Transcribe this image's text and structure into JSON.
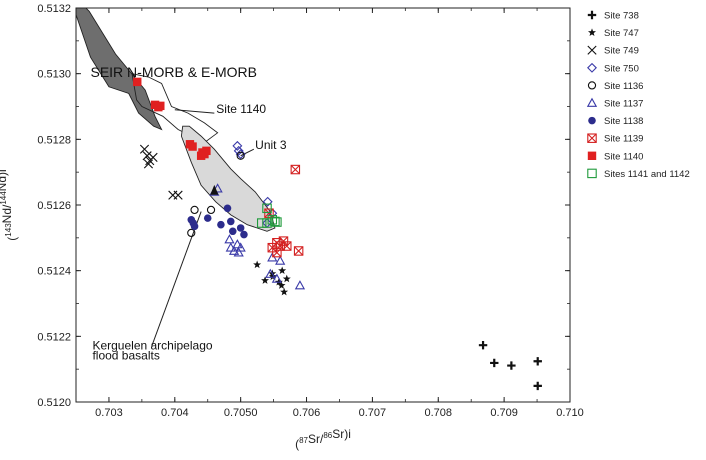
{
  "chart_data": {
    "type": "scatter",
    "title": "",
    "xlabel": "(87Sr/86Sr)i",
    "ylabel": "(143Nd/144Nd)i",
    "xlim": [
      0.7025,
      0.71
    ],
    "ylim": [
      0.512,
      0.5132
    ],
    "x_ticks": [
      0.703,
      0.704,
      0.705,
      0.706,
      0.707,
      0.708,
      0.709,
      0.71
    ],
    "x_tick_labels": [
      "0.703",
      "0.704",
      "0.7050",
      "0.706",
      "0.707",
      "0.708",
      "0.709",
      "0.710"
    ],
    "y_ticks": [
      0.512,
      0.5122,
      0.5124,
      0.5126,
      0.5128,
      0.513,
      0.5132
    ],
    "y_tick_labels": [
      "0.5120",
      "0.5122",
      "0.5124",
      "0.5126",
      "0.5128",
      "0.5130",
      "0.5132"
    ],
    "grid": false,
    "legend_placement": "right",
    "fields": [
      {
        "label": "SEIR N-MORB & E-MORB",
        "fill": "#6e6e6e",
        "outline": [
          [
            0.7025,
            0.51318
          ],
          [
            0.70272,
            0.51305
          ],
          [
            0.703,
            0.51296
          ],
          [
            0.7033,
            0.51294
          ],
          [
            0.70345,
            0.51288
          ],
          [
            0.70368,
            0.51284
          ],
          [
            0.7038,
            0.51283
          ],
          [
            0.7037,
            0.51287
          ],
          [
            0.70355,
            0.51295
          ],
          [
            0.7031,
            0.51306
          ],
          [
            0.7027,
            0.51319
          ],
          [
            0.70255,
            0.51322
          ],
          [
            0.7025,
            0.51322
          ]
        ]
      },
      {
        "label": "Site 1140",
        "fill": "none",
        "outline": [
          [
            0.70335,
            0.513
          ],
          [
            0.70342,
            0.51292
          ],
          [
            0.7035,
            0.5129
          ],
          [
            0.70382,
            0.51287
          ],
          [
            0.70405,
            0.51283
          ],
          [
            0.70445,
            0.51279
          ],
          [
            0.70465,
            0.51282
          ],
          [
            0.70445,
            0.51285
          ],
          [
            0.7042,
            0.51288
          ],
          [
            0.70395,
            0.5129
          ],
          [
            0.7038,
            0.51297
          ],
          [
            0.7036,
            0.51299
          ],
          [
            0.70335,
            0.513
          ]
        ]
      },
      {
        "label": "Kerguelen archipelago flood basalts",
        "fill": "#d9d9d9",
        "outline": [
          [
            0.70422,
            0.51284
          ],
          [
            0.7044,
            0.51281
          ],
          [
            0.7046,
            0.51277
          ],
          [
            0.70485,
            0.51271
          ],
          [
            0.705,
            0.51268
          ],
          [
            0.70522,
            0.51264
          ],
          [
            0.70545,
            0.51258
          ],
          [
            0.70552,
            0.51253
          ],
          [
            0.7054,
            0.51252
          ],
          [
            0.7051,
            0.51254
          ],
          [
            0.70485,
            0.51257
          ],
          [
            0.70462,
            0.51261
          ],
          [
            0.7044,
            0.51266
          ],
          [
            0.70425,
            0.51273
          ],
          [
            0.7041,
            0.51281
          ],
          [
            0.70412,
            0.51284
          ],
          [
            0.70422,
            0.51284
          ]
        ]
      }
    ],
    "annotations": [
      {
        "text": "SEIR N-MORB & E-MORB",
        "x": 0.70272,
        "y": 0.51299,
        "size": 14
      },
      {
        "text": "Site 1140",
        "x": 0.70463,
        "y": 0.51288,
        "size": 12
      },
      {
        "text": "Unit 3",
        "x": 0.70522,
        "y": 0.51277,
        "size": 12
      },
      {
        "text": "Kerguelen archipelago",
        "x": 0.70275,
        "y": 0.51216,
        "size": 12
      },
      {
        "text": "flood basalts",
        "x": 0.70275,
        "y": 0.51213,
        "size": 12
      }
    ],
    "leader_lines": [
      [
        [
          0.7046,
          0.51288
        ],
        [
          0.704,
          0.51289
        ]
      ],
      [
        [
          0.7052,
          0.51277
        ],
        [
          0.705,
          0.51275
        ]
      ],
      [
        [
          0.70365,
          0.51217
        ],
        [
          0.7044,
          0.51258
        ]
      ]
    ],
    "series": [
      {
        "name": "Site 738",
        "marker": "plus",
        "color": "#111111",
        "points": [
          [
            0.70868,
            0.512173
          ],
          [
            0.70885,
            0.512119
          ],
          [
            0.70911,
            0.512111
          ],
          [
            0.70951,
            0.512124
          ],
          [
            0.70951,
            0.512049
          ]
        ]
      },
      {
        "name": "Site 747",
        "marker": "star",
        "color": "#111111",
        "points": [
          [
            0.70525,
            0.512418
          ],
          [
            0.70537,
            0.51237
          ],
          [
            0.70549,
            0.512382
          ],
          [
            0.70548,
            0.512391
          ],
          [
            0.70558,
            0.512365
          ],
          [
            0.70562,
            0.512355
          ],
          [
            0.70566,
            0.512335
          ],
          [
            0.7057,
            0.512375
          ],
          [
            0.70563,
            0.5124
          ]
        ]
      },
      {
        "name": "Site 749",
        "marker": "x",
        "color": "#111111",
        "points": [
          [
            0.70354,
            0.51277
          ],
          [
            0.70358,
            0.51275
          ],
          [
            0.70362,
            0.512735
          ],
          [
            0.70367,
            0.512745
          ],
          [
            0.7036,
            0.512725
          ],
          [
            0.70397,
            0.51263
          ],
          [
            0.70405,
            0.51263
          ]
        ]
      },
      {
        "name": "Site 750",
        "marker": "diamond",
        "color": "#3a3aa8",
        "points": [
          [
            0.70495,
            0.51278
          ],
          [
            0.70497,
            0.512765
          ],
          [
            0.705,
            0.512755
          ],
          [
            0.70541,
            0.51261
          ],
          [
            0.70548,
            0.512575
          ],
          [
            0.7054,
            0.512545
          ]
        ]
      },
      {
        "name": "Site 1136",
        "marker": "circle",
        "color": "#111111",
        "points": [
          [
            0.705,
            0.51275
          ],
          [
            0.70425,
            0.512515
          ],
          [
            0.70455,
            0.512585
          ],
          [
            0.7043,
            0.512585
          ]
        ]
      },
      {
        "name": "Site 1137",
        "marker": "triangle",
        "color": "#3a3aa8",
        "points": [
          [
            0.70483,
            0.512495
          ],
          [
            0.70485,
            0.51247
          ],
          [
            0.7049,
            0.51246
          ],
          [
            0.70495,
            0.51248
          ],
          [
            0.70497,
            0.512455
          ],
          [
            0.705,
            0.51247
          ],
          [
            0.70548,
            0.51244
          ],
          [
            0.7056,
            0.51243
          ],
          [
            0.70545,
            0.51239
          ],
          [
            0.70555,
            0.512375
          ],
          [
            0.7059,
            0.512355
          ],
          [
            0.7046,
            0.51264
          ],
          [
            0.70465,
            0.51265
          ]
        ]
      },
      {
        "name": "Site 1138",
        "marker": "filled-circle",
        "color": "#2c2c8c",
        "points": [
          [
            0.70425,
            0.512555
          ],
          [
            0.70428,
            0.512545
          ],
          [
            0.7043,
            0.512535
          ],
          [
            0.7045,
            0.51256
          ],
          [
            0.7048,
            0.51259
          ],
          [
            0.70485,
            0.51255
          ],
          [
            0.7047,
            0.51254
          ],
          [
            0.70488,
            0.51252
          ],
          [
            0.70505,
            0.51251
          ],
          [
            0.705,
            0.51253
          ]
        ]
      },
      {
        "name": "Site 1139",
        "marker": "boxed-x",
        "color": "#d42020",
        "points": [
          [
            0.70583,
            0.512708
          ],
          [
            0.70543,
            0.512575
          ],
          [
            0.70548,
            0.51247
          ],
          [
            0.70555,
            0.512455
          ],
          [
            0.7056,
            0.512475
          ],
          [
            0.70565,
            0.51249
          ],
          [
            0.7057,
            0.512475
          ],
          [
            0.70555,
            0.512485
          ],
          [
            0.70588,
            0.51246
          ]
        ]
      },
      {
        "name": "Site 1140",
        "marker": "filled-square",
        "color": "#e02020",
        "points": [
          [
            0.70343,
            0.512975
          ],
          [
            0.7037,
            0.512905
          ],
          [
            0.70375,
            0.512898
          ],
          [
            0.70378,
            0.512902
          ],
          [
            0.70423,
            0.512785
          ],
          [
            0.70427,
            0.512778
          ],
          [
            0.70442,
            0.51276
          ],
          [
            0.70445,
            0.512755
          ],
          [
            0.70448,
            0.512765
          ],
          [
            0.7044,
            0.51275
          ]
        ]
      },
      {
        "name": "Sites 1141 and 1142",
        "marker": "square",
        "color": "#1e9a3a",
        "points": [
          [
            0.7054,
            0.51259
          ],
          [
            0.70548,
            0.512555
          ],
          [
            0.70552,
            0.51255
          ],
          [
            0.7054,
            0.512545
          ],
          [
            0.70532,
            0.512545
          ],
          [
            0.70555,
            0.512548
          ]
        ]
      }
    ],
    "extra_marks": [
      {
        "marker": "filled-triangle",
        "color": "#111111",
        "x": 0.7046,
        "y": 0.512645
      }
    ]
  }
}
